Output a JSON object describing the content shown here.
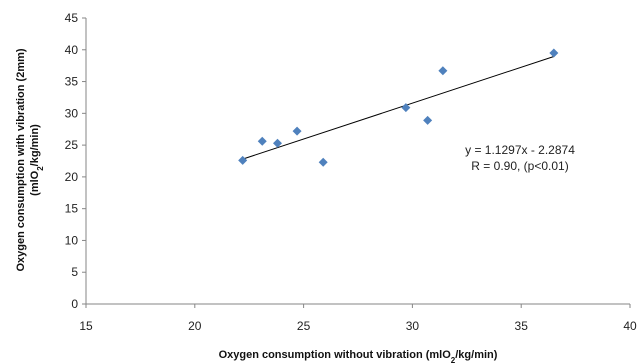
{
  "chart_data": {
    "type": "scatter",
    "x_label_parts": [
      "Oxygen consumption without vibration (mlO",
      "2",
      "/kg/min)"
    ],
    "y_label_line1": "Oxygen consumption with vibration (2mm)",
    "y_label_line2_parts": [
      "(mlO",
      "2",
      "/kg/min)"
    ],
    "xlim": [
      15,
      40
    ],
    "ylim": [
      0,
      45
    ],
    "x_ticks": [
      15,
      20,
      25,
      30,
      35,
      40
    ],
    "y_ticks": [
      0,
      5,
      10,
      15,
      20,
      25,
      30,
      35,
      40,
      45
    ],
    "x_tick_labels": [
      "15",
      "20",
      "25",
      "30",
      "35",
      "40"
    ],
    "y_tick_labels": [
      "0",
      "5",
      "10",
      "15",
      "20",
      "25",
      "30",
      "35",
      "40",
      "45"
    ],
    "points": [
      {
        "x": 22.2,
        "y": 22.6
      },
      {
        "x": 23.1,
        "y": 25.6
      },
      {
        "x": 23.8,
        "y": 25.3
      },
      {
        "x": 24.7,
        "y": 27.2
      },
      {
        "x": 25.9,
        "y": 22.3
      },
      {
        "x": 29.7,
        "y": 30.9
      },
      {
        "x": 30.7,
        "y": 28.9
      },
      {
        "x": 31.4,
        "y": 36.7
      },
      {
        "x": 36.5,
        "y": 39.5
      }
    ],
    "trendline": {
      "slope": 1.1297,
      "intercept": -2.2874,
      "x_range": [
        22.2,
        36.5
      ],
      "equation": "y = 1.1297x - 2.2874",
      "r_text": "R = 0.90, (p<0.01)"
    },
    "grid": false,
    "legend": false
  },
  "colors": {
    "marker": "#4F81BD",
    "trendline": "#000000",
    "axis": "#868686"
  }
}
